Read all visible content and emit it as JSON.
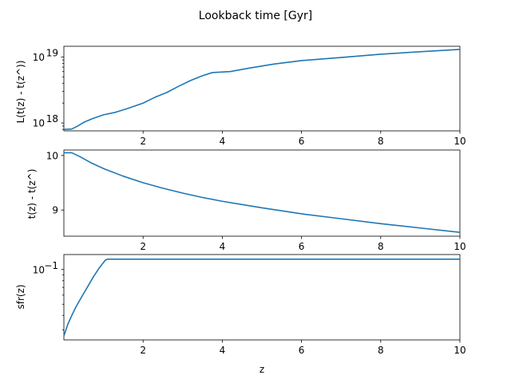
{
  "chart_data": {
    "title": "Lookback time [Gyr]",
    "xlabel": "z",
    "xlim": [
      0.0,
      10
    ],
    "xticks": [
      2,
      4,
      6,
      8,
      10
    ],
    "panels": [
      {
        "type": "line",
        "ylabel": "L(t(z) - t(z^))",
        "yscale": "log",
        "ylim": [
          7.6e+17,
          1.45e+19
        ],
        "yticks": [
          {
            "value": 1e+18,
            "label": "10",
            "exp": "18"
          },
          {
            "value": 1e+19,
            "label": "10",
            "exp": "19"
          }
        ],
        "series": [
          {
            "x": [
              0.0,
              0.2,
              0.35,
              0.5,
              0.7,
              1.0,
              1.3,
              1.6,
              2.0,
              2.3,
              2.6,
              2.9,
              3.2,
              3.5,
              3.75,
              4.2,
              4.7,
              5.3,
              6.0,
              7.0,
              8.0,
              9.0,
              10.0
            ],
            "y": [
              8e+17,
              8.1e+17,
              9e+17,
              1.02e+18,
              1.15e+18,
              1.33e+18,
              1.45e+18,
              1.65e+18,
              2e+18,
              2.45e+18,
              2.9e+18,
              3.6e+18,
              4.4e+18,
              5.2e+18,
              5.8e+18,
              6e+18,
              6.8e+18,
              7.8e+18,
              8.8e+18,
              9.8e+18,
              1.1e+19,
              1.2e+19,
              1.3e+19
            ]
          }
        ]
      },
      {
        "type": "line",
        "ylabel": "t(z) - t(z^)",
        "yscale": "linear",
        "ylim": [
          8.52,
          10.1
        ],
        "yticks": [
          {
            "value": 9,
            "label": "9"
          },
          {
            "value": 10,
            "label": "10"
          }
        ],
        "series": [
          {
            "x": [
              0.0,
              0.2,
              0.4,
              0.7,
              1.0,
              1.5,
              2.0,
              2.5,
              3.0,
              3.5,
              4.0,
              5.0,
              6.0,
              7.0,
              8.0,
              9.0,
              10.0
            ],
            "y": [
              10.05,
              10.05,
              9.98,
              9.86,
              9.76,
              9.62,
              9.5,
              9.4,
              9.31,
              9.23,
              9.16,
              9.04,
              8.93,
              8.84,
              8.75,
              8.67,
              8.59
            ]
          }
        ]
      },
      {
        "type": "line",
        "ylabel": "sfr(z)",
        "yscale": "log",
        "ylim": [
          0.0245,
          0.135
        ],
        "yticks": [
          {
            "value": 0.1,
            "label": "10",
            "exp": "−1"
          }
        ],
        "series": [
          {
            "x": [
              0.0,
              0.1,
              0.2,
              0.3,
              0.45,
              0.6,
              0.75,
              0.9,
              1.05,
              1.1,
              2.0,
              4.0,
              6.0,
              8.0,
              10.0
            ],
            "y": [
              0.0265,
              0.0335,
              0.04,
              0.047,
              0.058,
              0.071,
              0.087,
              0.104,
              0.121,
              0.123,
              0.123,
              0.123,
              0.123,
              0.123,
              0.123
            ]
          }
        ]
      }
    ]
  }
}
